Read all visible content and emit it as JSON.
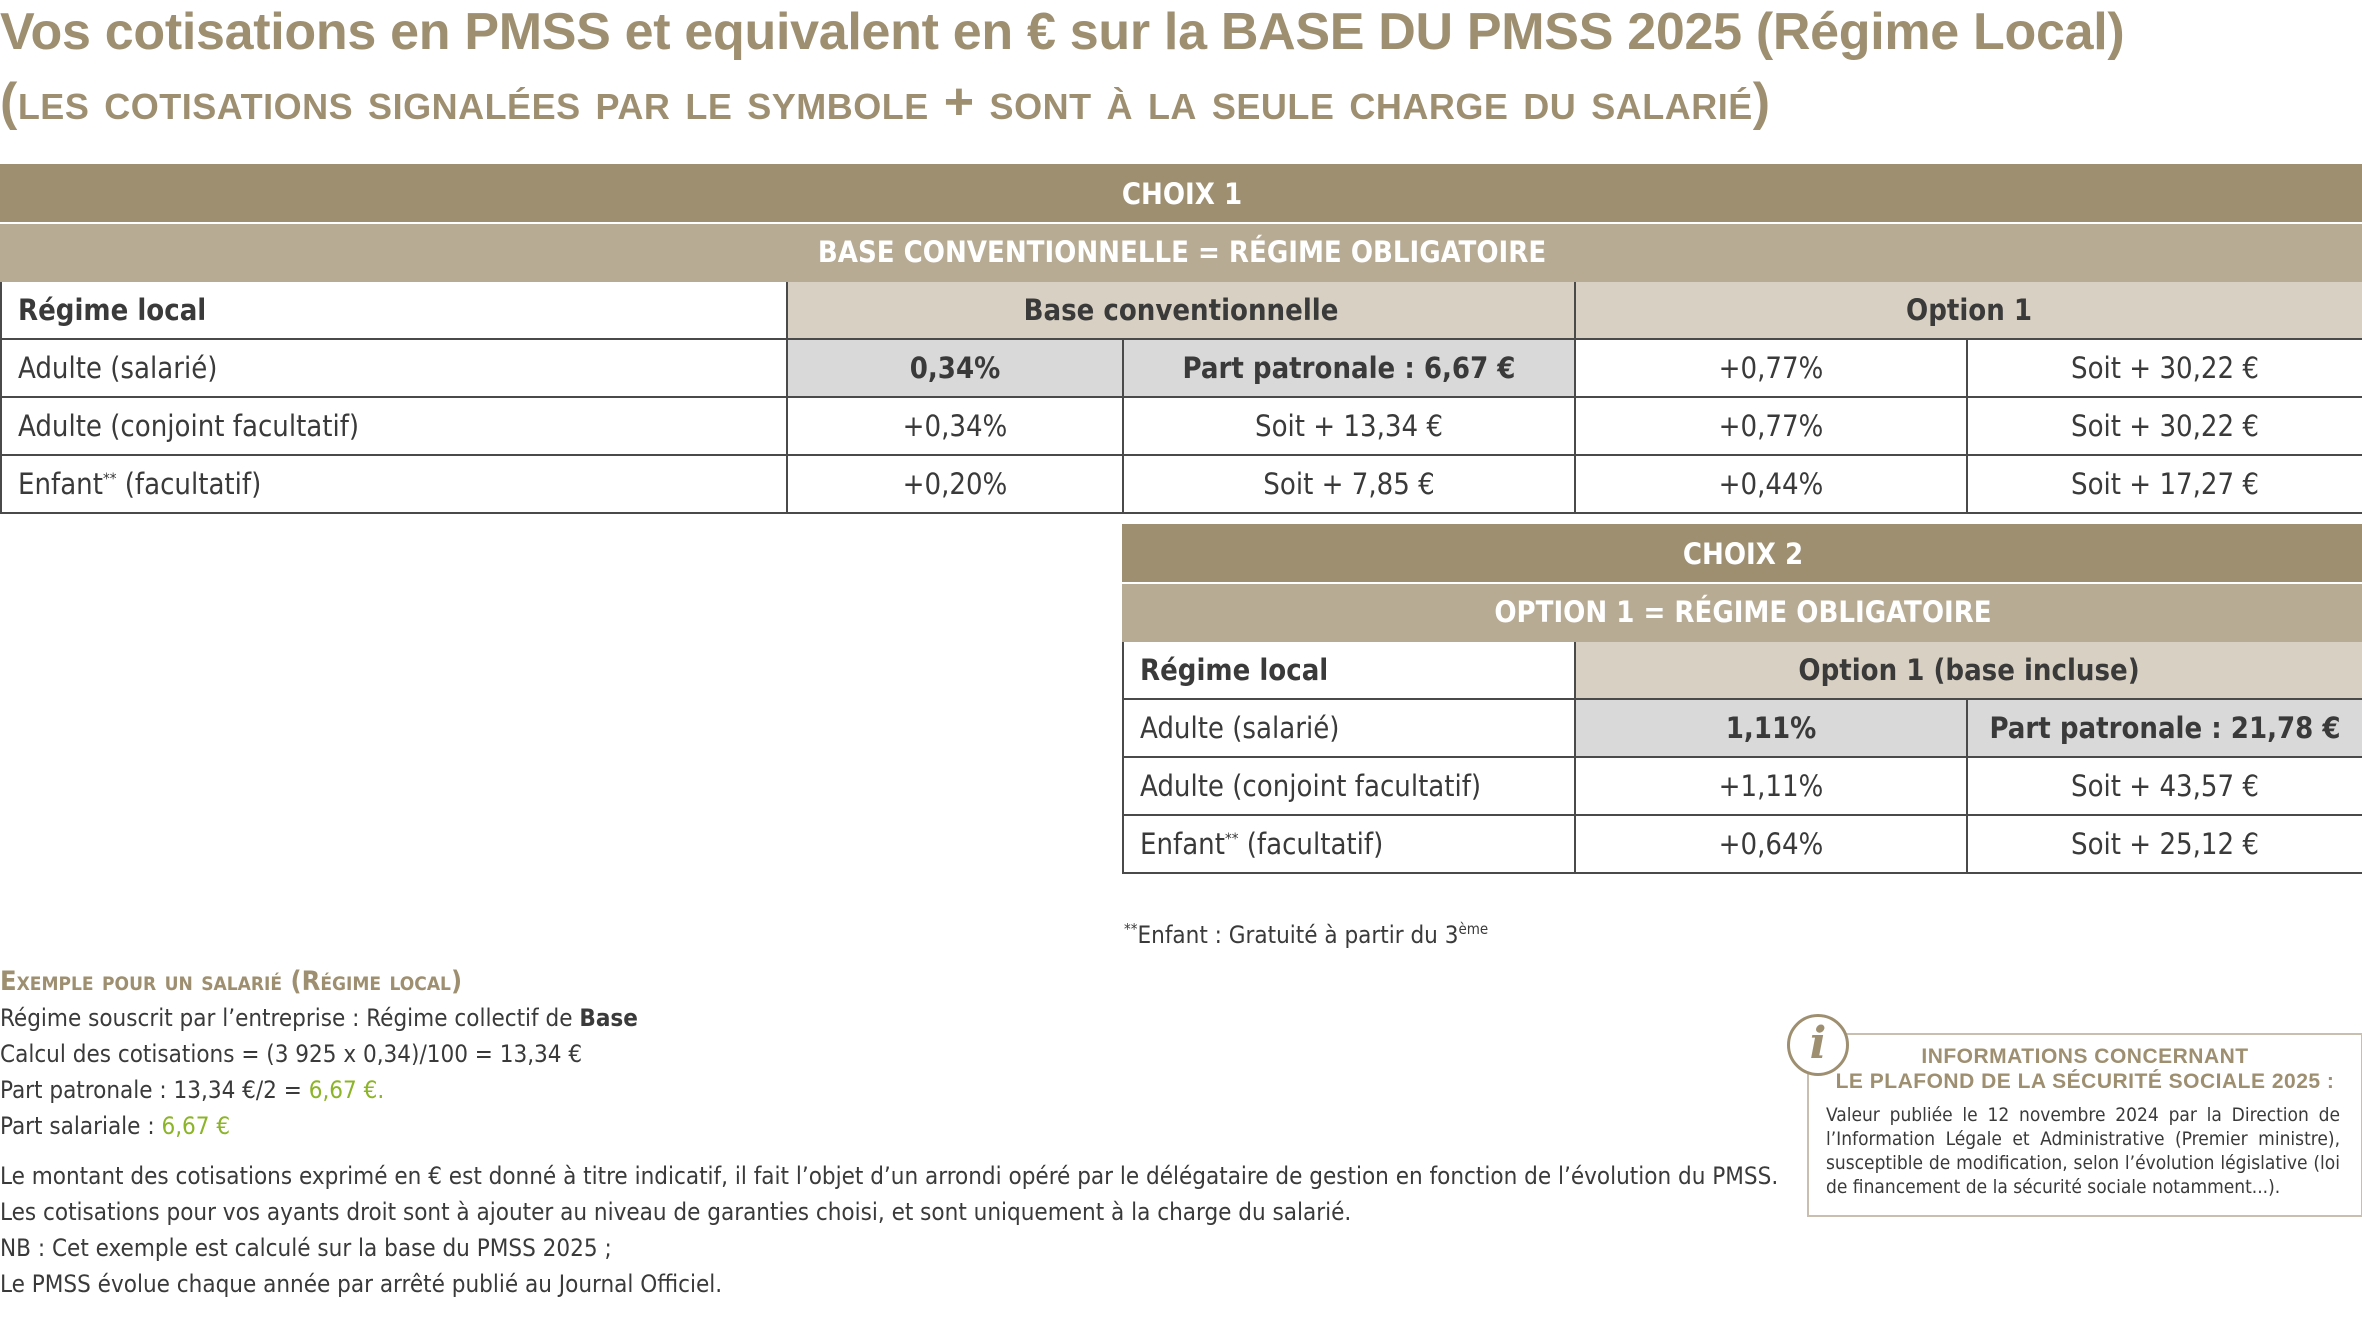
{
  "title": {
    "line1": "Vos cotisations en PMSS et equivalent en € sur la BASE DU PMSS 2025 (Régime Local)",
    "line2": "(les cotisations signalées par le symbole + sont à la seule charge du salarié)"
  },
  "choix1": {
    "header": "CHOIX 1",
    "subheader": "BASE CONVENTIONNELLE = RÉGIME OBLIGATOIRE",
    "col_label": "Régime local",
    "col_base": "Base conventionnelle",
    "col_option": "Option 1",
    "rows": [
      {
        "label": "Adulte (salarié)",
        "sup": "",
        "suffix": "",
        "base_rate": "0,34%",
        "base_amount": "Part patronale : 6,67 €",
        "opt_rate": "+0,77%",
        "opt_amount": "Soit + 30,22 €"
      },
      {
        "label": "Adulte (conjoint facultatif)",
        "sup": "",
        "suffix": "",
        "base_rate": "+0,34%",
        "base_amount": "Soit + 13,34 €",
        "opt_rate": "+0,77%",
        "opt_amount": "Soit + 30,22 €"
      },
      {
        "label": "Enfant",
        "sup": "**",
        "suffix": " (facultatif)",
        "base_rate": "+0,20%",
        "base_amount": "Soit + 7,85 €",
        "opt_rate": "+0,44%",
        "opt_amount": "Soit + 17,27 €"
      }
    ]
  },
  "choix2": {
    "header": "CHOIX 2",
    "subheader": "OPTION 1 = RÉGIME OBLIGATOIRE",
    "col_label": "Régime local",
    "col_option": "Option 1 (base incluse)",
    "rows": [
      {
        "label": "Adulte (salarié)",
        "sup": "",
        "suffix": "",
        "rate": "1,11%",
        "amount": "Part patronale : 21,78 €"
      },
      {
        "label": "Adulte (conjoint facultatif)",
        "sup": "",
        "suffix": "",
        "rate": "+1,11%",
        "amount": "Soit + 43,57 €"
      },
      {
        "label": "Enfant",
        "sup": "**",
        "suffix": " (facultatif)",
        "rate": "+0,64%",
        "amount": "Soit + 25,12 €"
      }
    ]
  },
  "footnote": {
    "prefix": "**",
    "text": "Enfant : Gratuité à partir du 3",
    "sup": "ème"
  },
  "example": {
    "heading": "Exemple pour un salarié (Régime local)",
    "line1_pre": "Régime souscrit par l’entreprise : Régime collectif de ",
    "line1_bold": "Base",
    "line2": "Calcul des cotisations = (3 925 x 0,34)/100 = 13,34 €",
    "line3_pre": "Part patronale : 13,34 €/2 = ",
    "line3_val": "6,67 €.",
    "line4_pre": "Part salariale : ",
    "line4_val": "6,67 €"
  },
  "paragraphs": [
    "Le montant des cotisations exprimé en € est donné à titre indicatif, il fait l’objet d’un arrondi opéré par le délégataire de gestion en fonction de l’évolution du PMSS.",
    "Les cotisations pour vos ayants droit sont à ajouter au niveau de garanties choisi, et sont uniquement à la charge du salarié.",
    "NB : Cet exemple est calculé sur la base du PMSS 2025 ;",
    "Le PMSS évolue chaque année par arrêté publié au Journal Officiel."
  ],
  "info": {
    "icon": "info-icon",
    "icon_glyph": "i",
    "title_line1": "INFORMATIONS CONCERNANT",
    "title_line2": "LE PLAFOND DE LA SÉCURITÉ SOCIALE 2025 :",
    "body": "Valeur publiée le 12 novembre 2024 par la Direction de l’Information Légale et Administrative (Premier ministre), susceptible de modification, selon l’évolution législative (loi de financement de la sécurité sociale notamment...)."
  },
  "colors": {
    "brand": "#9e8f71",
    "brand_light": "#b8ab94",
    "beige": "#d8d0c2",
    "grey": "#d9d9d9",
    "green": "#8cb428"
  }
}
